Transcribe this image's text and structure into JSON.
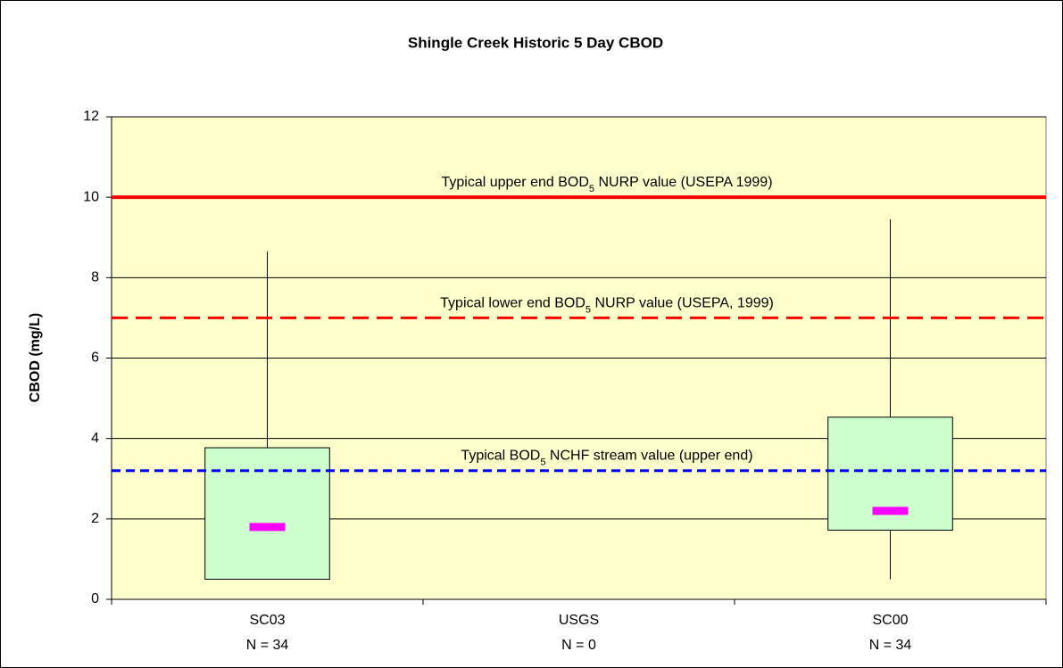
{
  "chart_data": {
    "type": "box",
    "title": "Shingle Creek Historic 5 Day CBOD",
    "y_label": "CBOD (mg/L)",
    "categories": [
      "SC03",
      "USGS",
      "SC00"
    ],
    "n_labels": [
      "N = 34",
      "N = 0",
      "N = 34"
    ],
    "boxes": [
      {
        "min": 0.5,
        "q1": 0.5,
        "median": 1.8,
        "q3": 3.77,
        "max": 8.65
      },
      null,
      {
        "min": 0.5,
        "q1": 1.72,
        "median": 2.2,
        "q3": 4.53,
        "max": 9.45
      }
    ],
    "box_color": "#ccffcc",
    "median_color": "#ff00ff",
    "reference_lines": [
      {
        "value": 10,
        "color": "#ff0000",
        "dashed": false,
        "label": [
          "Typical upper end BOD",
          "5",
          " NURP value (USEPA 1999)"
        ]
      },
      {
        "value": 7,
        "color": "#ff0000",
        "dashed": true,
        "label": [
          "Typical lower end BOD",
          "5",
          " NURP value (USEPA, 1999)"
        ]
      },
      {
        "value": 3.2,
        "color": "#0000ff",
        "dashed": true,
        "label": [
          "Typical BOD",
          "5",
          " NCHF stream value (upper end)"
        ]
      }
    ],
    "ylim": [
      0,
      12
    ],
    "yticks": [
      0,
      2,
      4,
      6,
      8,
      10,
      12
    ],
    "grid": true
  }
}
